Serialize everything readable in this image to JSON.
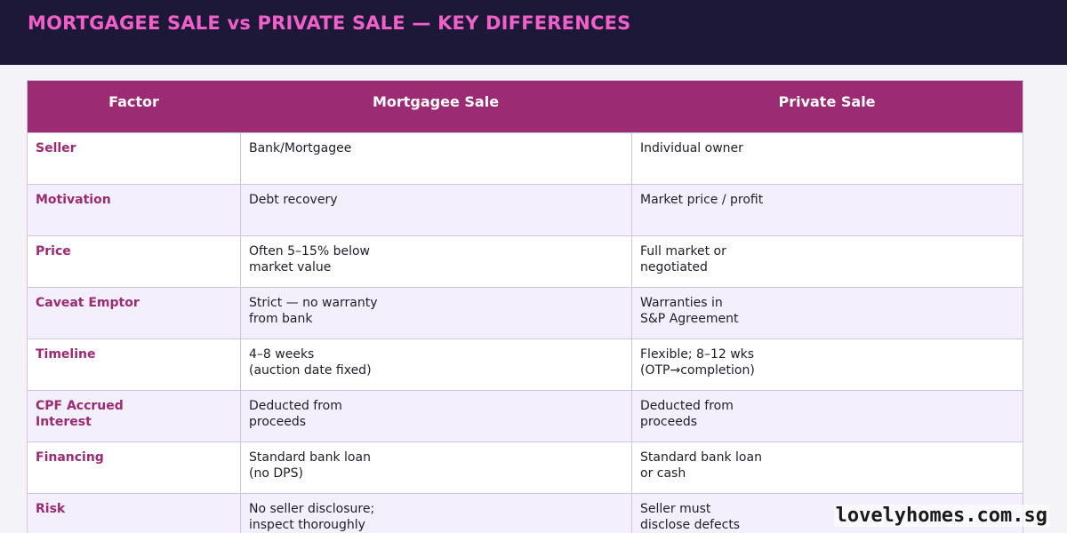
{
  "title": "MORTGAGEE SALE vs PRIVATE SALE — KEY DIFFERENCES",
  "colors": {
    "header_bg": "#1d1838",
    "title": "#f060c8",
    "table_head": "#9b2b72",
    "factor_text": "#9b2b72",
    "alt_row": "#f3effd"
  },
  "table": {
    "headers": [
      "Factor",
      "Mortgagee Sale",
      "Private Sale"
    ],
    "rows": [
      {
        "factor": "Seller",
        "mortgagee": "Bank/Mortgagee",
        "private": "Individual owner"
      },
      {
        "factor": "Motivation",
        "mortgagee": "Debt recovery",
        "private": "Market price / profit"
      },
      {
        "factor": "Price",
        "mortgagee": "Often 5–15% below\nmarket value",
        "private": "Full market or\nnegotiated"
      },
      {
        "factor": "Caveat Emptor",
        "mortgagee": "Strict — no warranty\nfrom bank",
        "private": "Warranties in\nS&P Agreement"
      },
      {
        "factor": "Timeline",
        "mortgagee": "4–8 weeks\n(auction date fixed)",
        "private": "Flexible; 8–12 wks\n(OTP→completion)"
      },
      {
        "factor": "CPF Accrued\nInterest",
        "mortgagee": "Deducted from\nproceeds",
        "private": "Deducted from\nproceeds"
      },
      {
        "factor": "Financing",
        "mortgagee": "Standard bank loan\n(no DPS)",
        "private": "Standard bank loan\nor cash"
      },
      {
        "factor": "Risk",
        "mortgagee": "No seller disclosure;\ninspect thoroughly",
        "private": "Seller must\ndisclose defects"
      }
    ]
  },
  "watermark": "lovelyhomes.com.sg"
}
